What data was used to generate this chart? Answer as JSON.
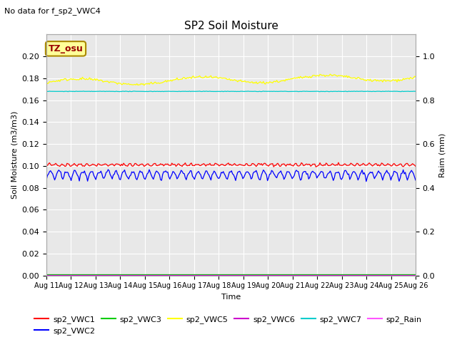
{
  "title": "SP2 Soil Moisture",
  "no_data_label": "No data for f_sp2_VWC4",
  "xlabel": "Time",
  "ylabel_left": "Soil Moisture (m3/m3)",
  "ylabel_right": "Raim (mm)",
  "tz_label": "TZ_osu",
  "ylim_left": [
    0.0,
    0.22
  ],
  "ylim_right": [
    0.0,
    1.1
  ],
  "xtick_labels": [
    "Aug 11",
    "Aug 12",
    "Aug 13",
    "Aug 14",
    "Aug 15",
    "Aug 16",
    "Aug 17",
    "Aug 18",
    "Aug 19",
    "Aug 20",
    "Aug 21",
    "Aug 22",
    "Aug 23",
    "Aug 24",
    "Aug 25",
    "Aug 26"
  ],
  "ytick_left": [
    0.0,
    0.02,
    0.04,
    0.06,
    0.08,
    0.1,
    0.12,
    0.14,
    0.16,
    0.18,
    0.2
  ],
  "ytick_right": [
    0.0,
    0.2,
    0.4,
    0.6,
    0.8,
    1.0
  ],
  "bg_color": "#e8e8e8",
  "vwc1_base": 0.1,
  "vwc1_amp": 0.002,
  "vwc2_base": 0.087,
  "vwc2_amp": 0.008,
  "vwc5_base": 0.176,
  "vwc5_amp": 0.003,
  "vwc7_base": 0.168,
  "legend_colors": [
    "#ff0000",
    "#0000ff",
    "#00cc00",
    "#ffff00",
    "#cc00cc",
    "#00cccc",
    "#ff55ff"
  ],
  "legend_labels": [
    "sp2_VWC1",
    "sp2_VWC2",
    "sp2_VWC3",
    "sp2_VWC5",
    "sp2_VWC6",
    "sp2_VWC7",
    "sp2_Rain"
  ]
}
